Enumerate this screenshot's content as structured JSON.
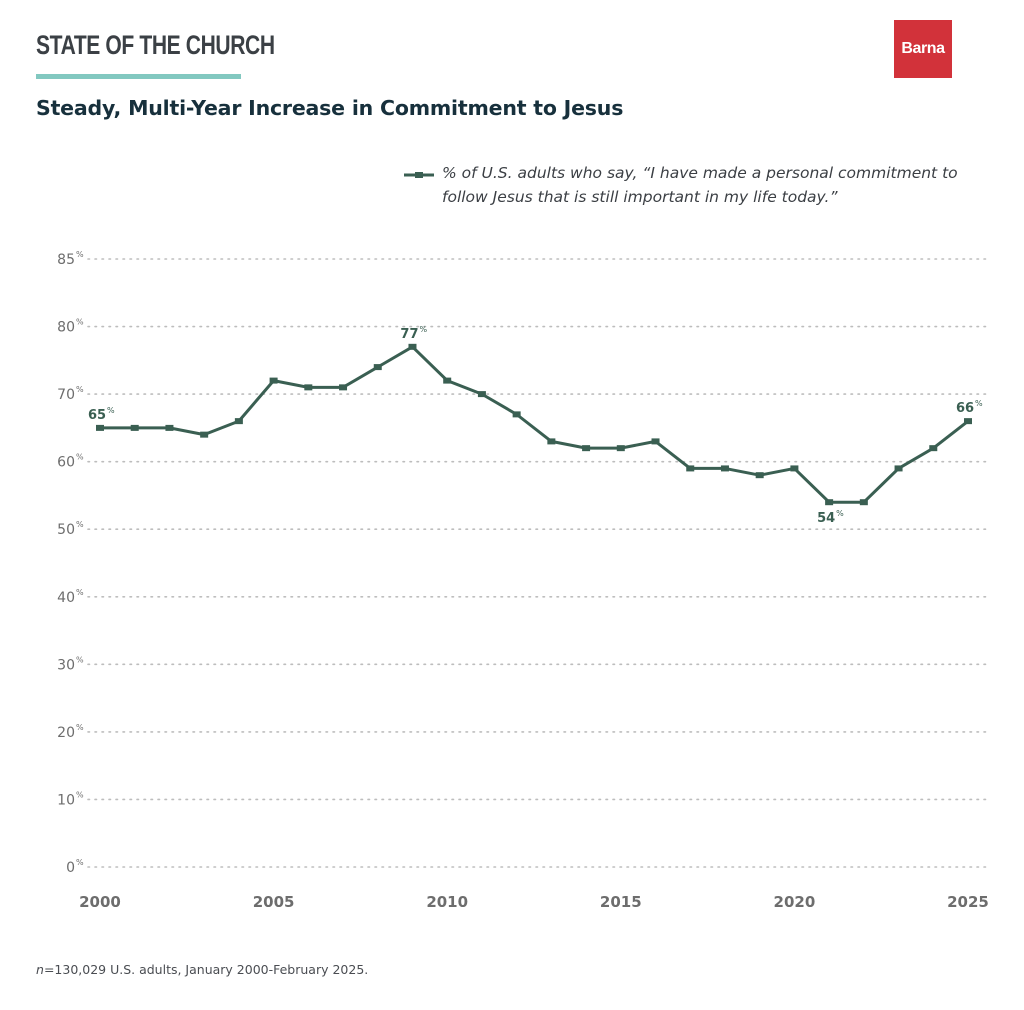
{
  "header": {
    "kicker": "STATE OF THE CHURCH",
    "title": "Steady, Multi-Year Increase in Commitment to Jesus",
    "logo_text": "Barna"
  },
  "colors": {
    "line": "#3a5f52",
    "grid": "#bdbdbd",
    "axis_text": "#6d6d6d",
    "accent_rule": "#82c8c0",
    "logo_bg": "#d2323a",
    "title": "#17303c"
  },
  "footnote": {
    "n_symbol": "n",
    "text": "=130,029 U.S. adults, January 2000-February 2025."
  },
  "chart_data": {
    "type": "line",
    "title": "Steady, Multi-Year Increase in Commitment to Jesus",
    "xlabel": "",
    "ylabel": "",
    "legend": {
      "placement": "top-right",
      "entries": [
        "% of U.S. adults who say, “I have made a personal commitment to follow Jesus that is still important in my life today.”"
      ]
    },
    "grid": true,
    "y_ticks": [
      0,
      10,
      20,
      30,
      40,
      50,
      60,
      70,
      80,
      85
    ],
    "y_tick_labels": [
      "0",
      "10",
      "20",
      "30",
      "40",
      "50",
      "60",
      "70",
      "80",
      "85"
    ],
    "y_tick_suffix": "%",
    "ylim": [
      0,
      85
    ],
    "x_ticks": [
      2000,
      2005,
      2010,
      2015,
      2020,
      2025
    ],
    "x_tick_labels": [
      "2000",
      "2005",
      "2010",
      "2015",
      "2020",
      "2025"
    ],
    "xlim": [
      2000,
      2025
    ],
    "x": [
      2000,
      2001,
      2002,
      2003,
      2004,
      2005,
      2006,
      2007,
      2008,
      2009,
      2010,
      2011,
      2012,
      2013,
      2014,
      2015,
      2016,
      2017,
      2018,
      2019,
      2020,
      2021,
      2022,
      2023,
      2024,
      2025
    ],
    "series": [
      {
        "name": "% of U.S. adults who say, “I have made a personal commitment to follow Jesus that is still important in my life today.”",
        "values": [
          65,
          65,
          65,
          64,
          66,
          72,
          71,
          71,
          74,
          77,
          72,
          70,
          67,
          63,
          62,
          62,
          63,
          59,
          59,
          58,
          59,
          54,
          54,
          59,
          62,
          66
        ]
      }
    ],
    "annotations": [
      {
        "x": 2000,
        "value": 65,
        "label": "65",
        "suffix": "%",
        "position": "above"
      },
      {
        "x": 2009,
        "value": 77,
        "label": "77",
        "suffix": "%",
        "position": "above"
      },
      {
        "x": 2021,
        "value": 54,
        "label": "54",
        "suffix": "%",
        "position": "below"
      },
      {
        "x": 2025,
        "value": 66,
        "label": "66",
        "suffix": "%",
        "position": "above"
      }
    ]
  }
}
